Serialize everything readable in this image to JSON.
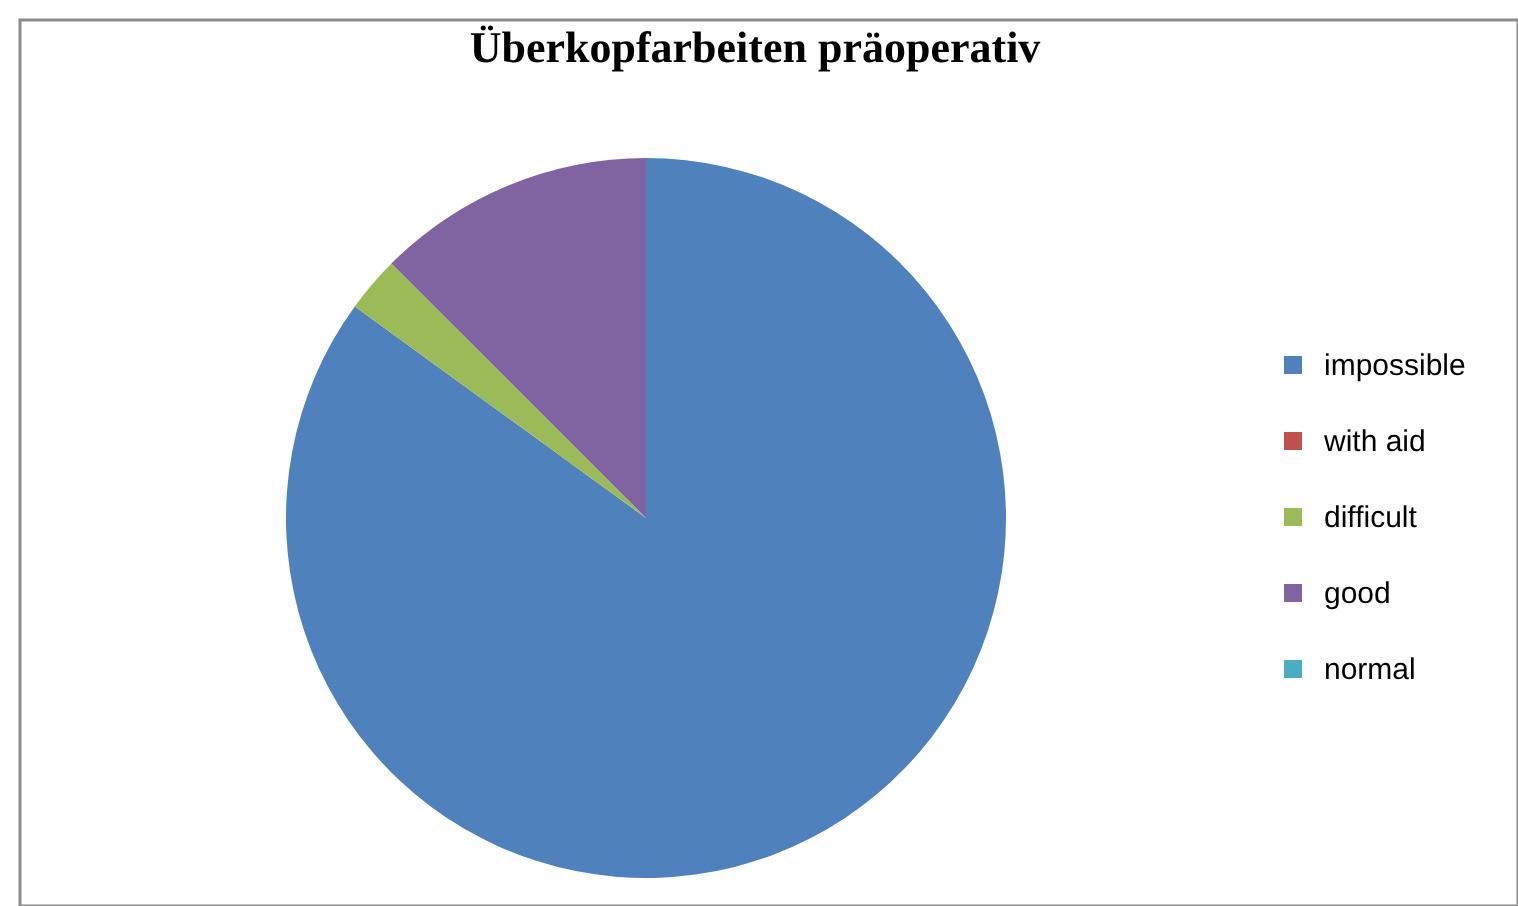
{
  "chart_data": {
    "type": "pie",
    "title": "Überkopfarbeiten präoperativ",
    "categories": [
      "impossible",
      "with aid",
      "difficult",
      "good",
      "normal"
    ],
    "values": [
      85,
      0,
      2.5,
      12.5,
      0
    ],
    "colors": [
      "#4f81bd",
      "#c0504d",
      "#9bbb59",
      "#8064a2",
      "#4bacc6"
    ],
    "legend": "right"
  }
}
